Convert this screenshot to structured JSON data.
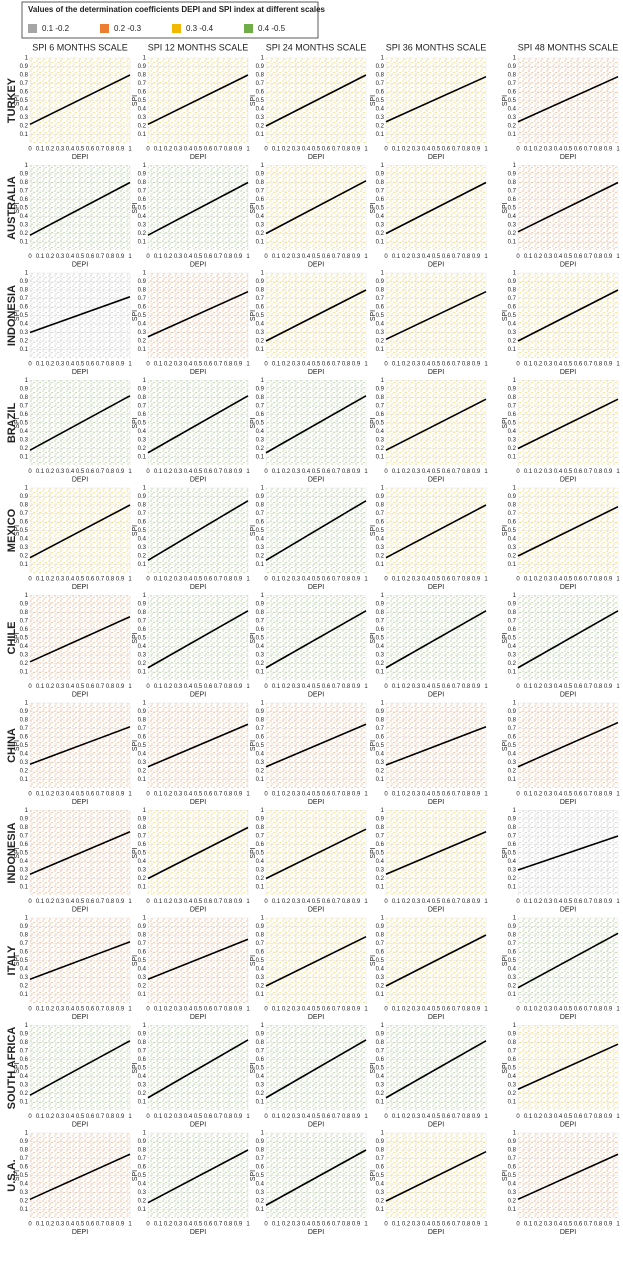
{
  "chart_data": {
    "type": "scatter-grid",
    "legend": {
      "title": "Values of the determination coefficients DEPI and SPI index at different scales",
      "items": [
        {
          "label": "0.1 -0.2",
          "color": "#a5a5a5"
        },
        {
          "label": "0.2 -0.3",
          "color": "#ed7d31"
        },
        {
          "label": "0.3 -0.4",
          "color": "#f2b800"
        },
        {
          "label": "0.4 -0.5",
          "color": "#70ad47"
        }
      ]
    },
    "columns": [
      "SPI 6 MONTHS SCALE",
      "SPI 12 MONTHS SCALE",
      "SPI 24 MONTHS SCALE",
      "SPI 36 MONTHS SCALE",
      "SPI 48 MONTHS SCALE"
    ],
    "rows": [
      "TURKEY",
      "AUSTRALIA",
      "INDONESIA",
      "BRAZIL",
      "MEXICO",
      "CHILE",
      "CHINA",
      "INDONESIA",
      "ITALY",
      "SOUTH AFRICA",
      "U.S.A."
    ],
    "x_label": "DEPI",
    "y_label": "SPI",
    "xlim": [
      0,
      1
    ],
    "ylim": [
      0,
      1
    ],
    "xticks": [
      0,
      0.1,
      0.2,
      0.3,
      0.4,
      0.5,
      0.6,
      0.7,
      0.8,
      0.9,
      1
    ],
    "yticks": [
      0.1,
      0.2,
      0.3,
      0.4,
      0.5,
      0.6,
      0.7,
      0.8,
      0.9,
      1
    ],
    "grid": true,
    "panels": [
      [
        {
          "class": 2,
          "line": [
            0.22,
            0.8
          ]
        },
        {
          "class": 2,
          "line": [
            0.22,
            0.8
          ]
        },
        {
          "class": 2,
          "line": [
            0.2,
            0.8
          ]
        },
        {
          "class": 2,
          "line": [
            0.25,
            0.78
          ]
        },
        {
          "class": 1,
          "line": [
            0.25,
            0.78
          ]
        }
      ],
      [
        {
          "class": 3,
          "line": [
            0.18,
            0.8
          ]
        },
        {
          "class": 3,
          "line": [
            0.18,
            0.8
          ]
        },
        {
          "class": 2,
          "line": [
            0.2,
            0.82
          ]
        },
        {
          "class": 2,
          "line": [
            0.2,
            0.8
          ]
        },
        {
          "class": 1,
          "line": [
            0.22,
            0.8
          ]
        }
      ],
      [
        {
          "class": 0,
          "line": [
            0.3,
            0.72
          ]
        },
        {
          "class": 1,
          "line": [
            0.25,
            0.78
          ]
        },
        {
          "class": 2,
          "line": [
            0.2,
            0.8
          ]
        },
        {
          "class": 2,
          "line": [
            0.22,
            0.78
          ]
        },
        {
          "class": 2,
          "line": [
            0.2,
            0.8
          ]
        }
      ],
      [
        {
          "class": 3,
          "line": [
            0.18,
            0.82
          ]
        },
        {
          "class": 3,
          "line": [
            0.15,
            0.82
          ]
        },
        {
          "class": 3,
          "line": [
            0.15,
            0.82
          ]
        },
        {
          "class": 2,
          "line": [
            0.18,
            0.78
          ]
        },
        {
          "class": 2,
          "line": [
            0.2,
            0.78
          ]
        }
      ],
      [
        {
          "class": 2,
          "line": [
            0.18,
            0.8
          ]
        },
        {
          "class": 3,
          "line": [
            0.15,
            0.85
          ]
        },
        {
          "class": 3,
          "line": [
            0.15,
            0.85
          ]
        },
        {
          "class": 2,
          "line": [
            0.18,
            0.8
          ]
        },
        {
          "class": 2,
          "line": [
            0.2,
            0.78
          ]
        }
      ],
      [
        {
          "class": 1,
          "line": [
            0.22,
            0.75
          ]
        },
        {
          "class": 3,
          "line": [
            0.15,
            0.82
          ]
        },
        {
          "class": 3,
          "line": [
            0.15,
            0.82
          ]
        },
        {
          "class": 3,
          "line": [
            0.15,
            0.82
          ]
        },
        {
          "class": 3,
          "line": [
            0.15,
            0.82
          ]
        }
      ],
      [
        {
          "class": 1,
          "line": [
            0.28,
            0.72
          ]
        },
        {
          "class": 1,
          "line": [
            0.25,
            0.75
          ]
        },
        {
          "class": 1,
          "line": [
            0.25,
            0.75
          ]
        },
        {
          "class": 1,
          "line": [
            0.27,
            0.72
          ]
        },
        {
          "class": 1,
          "line": [
            0.25,
            0.77
          ]
        }
      ],
      [
        {
          "class": 1,
          "line": [
            0.25,
            0.75
          ]
        },
        {
          "class": 2,
          "line": [
            0.2,
            0.8
          ]
        },
        {
          "class": 2,
          "line": [
            0.2,
            0.78
          ]
        },
        {
          "class": 2,
          "line": [
            0.25,
            0.75
          ]
        },
        {
          "class": 0,
          "line": [
            0.3,
            0.7
          ]
        }
      ],
      [
        {
          "class": 1,
          "line": [
            0.28,
            0.72
          ]
        },
        {
          "class": 1,
          "line": [
            0.28,
            0.75
          ]
        },
        {
          "class": 2,
          "line": [
            0.2,
            0.78
          ]
        },
        {
          "class": 2,
          "line": [
            0.2,
            0.8
          ]
        },
        {
          "class": 3,
          "line": [
            0.18,
            0.82
          ]
        }
      ],
      [
        {
          "class": 3,
          "line": [
            0.18,
            0.82
          ]
        },
        {
          "class": 3,
          "line": [
            0.15,
            0.83
          ]
        },
        {
          "class": 3,
          "line": [
            0.15,
            0.83
          ]
        },
        {
          "class": 3,
          "line": [
            0.15,
            0.82
          ]
        },
        {
          "class": 2,
          "line": [
            0.25,
            0.78
          ]
        }
      ],
      [
        {
          "class": 1,
          "line": [
            0.22,
            0.75
          ]
        },
        {
          "class": 3,
          "line": [
            0.18,
            0.8
          ]
        },
        {
          "class": 3,
          "line": [
            0.15,
            0.8
          ]
        },
        {
          "class": 2,
          "line": [
            0.2,
            0.78
          ]
        },
        {
          "class": 1,
          "line": [
            0.22,
            0.75
          ]
        }
      ]
    ]
  }
}
